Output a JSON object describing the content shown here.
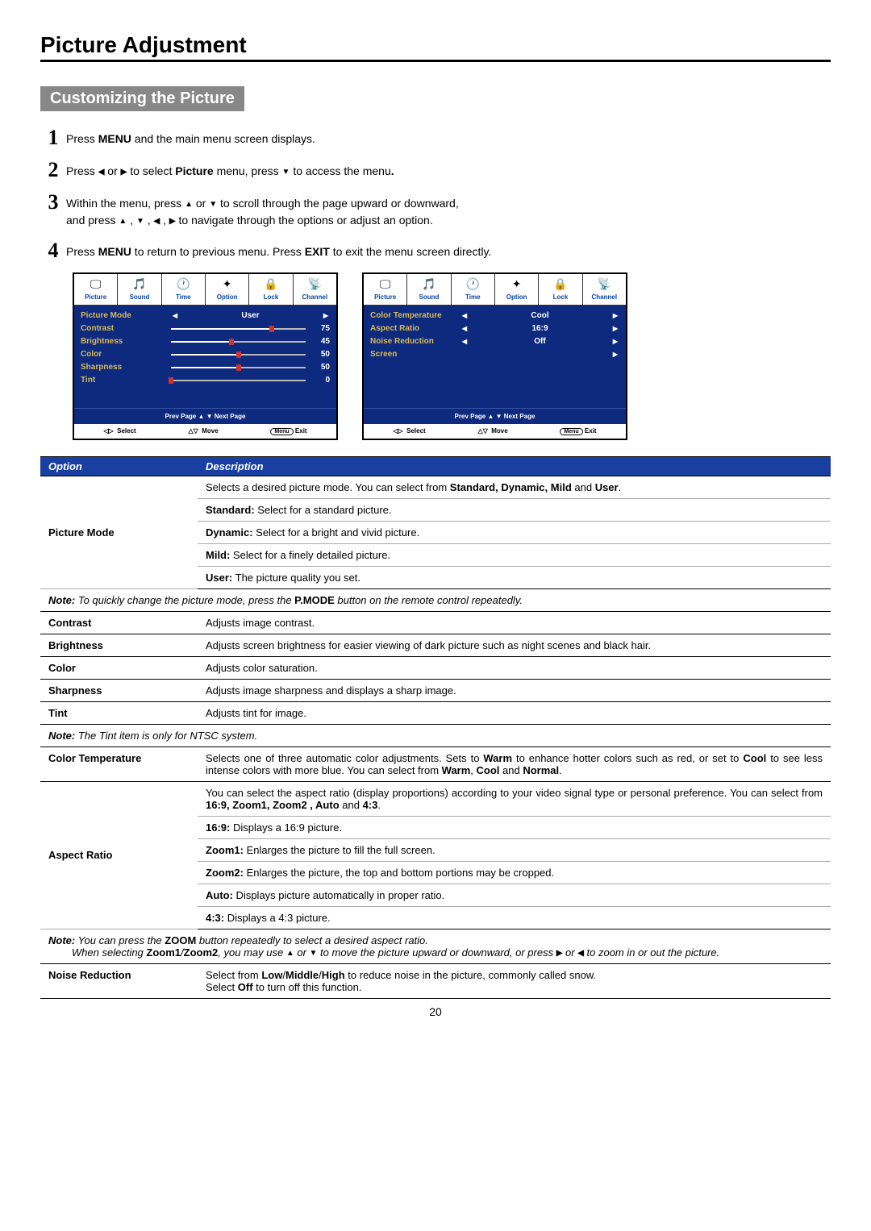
{
  "page": {
    "title": "Picture Adjustment",
    "section": "Customizing the Picture",
    "pageNumber": "20"
  },
  "steps": {
    "s1_a": "Press ",
    "s1_b": "MENU",
    "s1_c": " and the main menu screen displays.",
    "s2_a": "Press ",
    "s2_b": " or ",
    "s2_c": " to select ",
    "s2_d": "Picture",
    "s2_e": " menu,  press ",
    "s2_f": " to access the menu",
    "s2_g": ".",
    "s3_a": "Within the menu, press ",
    "s3_b": " or ",
    "s3_c": " to scroll through the page upward or downward,",
    "s3_d": "and press ",
    "s3_e": " , ",
    "s3_f": " , ",
    "s3_g": " , ",
    "s3_h": "  to navigate through the options or adjust an option.",
    "s4_a": "Press ",
    "s4_b": "MENU",
    "s4_c": " to return to previous menu. Press ",
    "s4_d": "EXIT",
    "s4_e": " to exit the menu screen directly."
  },
  "osd": {
    "tabs": [
      "Picture",
      "Sound",
      "Time",
      "Option",
      "Lock",
      "Channel"
    ],
    "tabIcons": [
      "🖵",
      "🎵",
      "🕐",
      "✦",
      "🔒",
      "📡"
    ],
    "nav": "Prev  Page ▲  ▼ Next  Page",
    "footer": {
      "select": "Select",
      "move": "Move",
      "exit": "Exit",
      "menu": "Menu"
    },
    "left": {
      "pictureMode": {
        "label": "Picture Mode",
        "value": "User"
      },
      "contrast": {
        "label": "Contrast",
        "value": 75
      },
      "brightness": {
        "label": "Brightness",
        "value": 45
      },
      "color": {
        "label": "Color",
        "value": 50
      },
      "sharpness": {
        "label": "Sharpness",
        "value": 50
      },
      "tint": {
        "label": "Tint",
        "value": 0
      }
    },
    "right": {
      "colorTemp": {
        "label": "Color Temperature",
        "value": "Cool"
      },
      "aspectRatio": {
        "label": "Aspect Ratio",
        "value": "16:9"
      },
      "noiseRed": {
        "label": "Noise Reduction",
        "value": "Off"
      },
      "screen": {
        "label": "Screen"
      }
    }
  },
  "table": {
    "header": {
      "option": "Option",
      "desc": "Description"
    },
    "pictureMode": {
      "name": "Picture Mode",
      "desc_a": "Selects a desired picture mode. You can select from ",
      "desc_b": "Standard, Dynamic, Mild",
      "desc_c": " and ",
      "desc_d": "User",
      "desc_e": ".",
      "std_a": "Standard:",
      "std_b": " Select for a standard picture.",
      "dyn_a": "Dynamic:",
      "dyn_b": " Select for a bright and vivid picture.",
      "mild_a": "Mild:",
      "mild_b": " Select for a finely detailed picture.",
      "usr_a": "User:",
      "usr_b": " The picture quality you set.",
      "note_a": "Note:",
      "note_b": " To quickly change the picture mode, press the ",
      "note_c": "P.MODE",
      "note_d": " button on the remote control repeatedly."
    },
    "contrast": {
      "name": "Contrast",
      "desc": "Adjusts image contrast."
    },
    "brightness": {
      "name": "Brightness",
      "desc": "Adjusts screen brightness for easier viewing of dark picture such as night scenes and black hair."
    },
    "color": {
      "name": "Color",
      "desc": "Adjusts color saturation."
    },
    "sharpness": {
      "name": "Sharpness",
      "desc": "Adjusts image sharpness and displays a sharp image."
    },
    "tint": {
      "name": "Tint",
      "desc": "Adjusts tint for image.",
      "note_a": "Note:",
      "note_b": " The Tint item is only for NTSC system."
    },
    "colorTemp": {
      "name": "Color Temperature",
      "d1": "Selects one of three automatic color adjustments.  Sets to ",
      "d2": "Warm",
      "d3": " to enhance hotter colors such as red,  or set to ",
      "d4": "Cool",
      "d5": " to see less intense colors with more blue.  You can select from ",
      "d6": "Warm",
      "d7": ", ",
      "d8": "Cool",
      "d9": " and ",
      "d10": "Normal",
      "d11": "."
    },
    "aspect": {
      "name": "Aspect Ratio",
      "d1": "You can select the aspect ratio (display proportions) according to your video signal type or personal preference. You can select from ",
      "d2": "16:9,  Zoom1, Zoom2 , Auto",
      "d3": " and ",
      "d4": "4:3",
      "d5": ".",
      "r169_a": "16:9:",
      "r169_b": " Displays a 16:9 picture.",
      "z1_a": "Zoom1:",
      "z1_b": " Enlarges the picture to fill the full screen.",
      "z2_a": "Zoom2:",
      "z2_b": " Enlarges the picture, the top and bottom portions may be cropped.",
      "au_a": "Auto:",
      "au_b": " Displays picture automatically in proper ratio.",
      "r43_a": "4:3:",
      "r43_b": " Displays a 4:3 picture.",
      "note_a": "Note:",
      "note_b": " You can press the ",
      "note_c": "ZOOM",
      "note_d": " button repeatedly to select a desired aspect ratio.",
      "note2_a": "When selecting ",
      "note2_b": "Zoom1",
      "note2_c": "/",
      "note2_d": "Zoom2",
      "note2_e": ", you may use ",
      "note2_f": " or ",
      "note2_g": " to move the picture upward or downward, or press ",
      "note2_h": " or ",
      "note2_i": " to zoom in or out the picture."
    },
    "noise": {
      "name": "Noise Reduction",
      "d1": "Select from ",
      "d2": "Low",
      "d3": "/",
      "d4": "Middle",
      "d5": "/",
      "d6": "High",
      "d7": " to reduce noise in the picture, commonly called snow.",
      "d8": "Select ",
      "d9": "Off",
      "d10": " to turn off this function."
    }
  }
}
